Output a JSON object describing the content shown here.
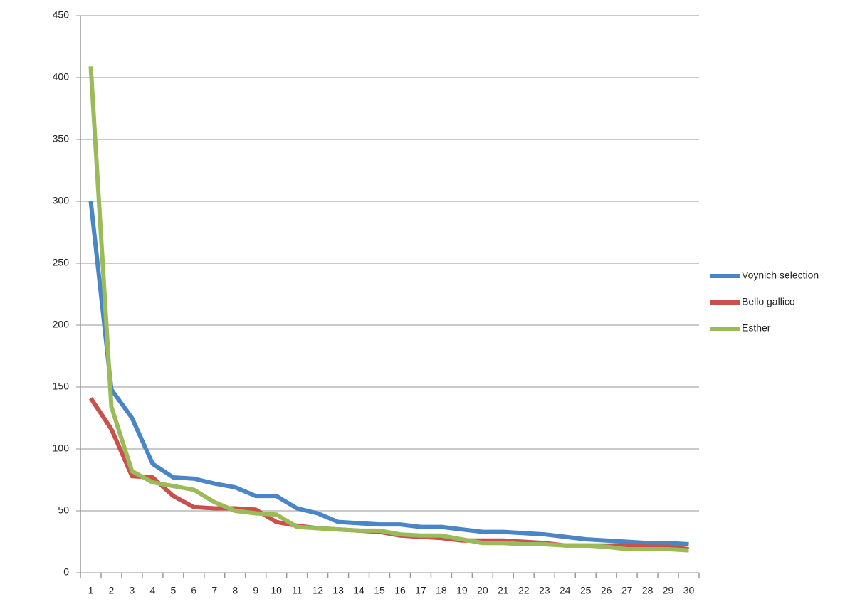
{
  "chart_data": {
    "type": "line",
    "categories": [
      1,
      2,
      3,
      4,
      5,
      6,
      7,
      8,
      9,
      10,
      11,
      12,
      13,
      14,
      15,
      16,
      17,
      18,
      19,
      20,
      21,
      22,
      23,
      24,
      25,
      26,
      27,
      28,
      29,
      30
    ],
    "series": [
      {
        "name": "Voynich selection",
        "color": "#4a86c6",
        "values": [
          300,
          148,
          125,
          88,
          77,
          76,
          72,
          69,
          62,
          62,
          52,
          48,
          41,
          40,
          39,
          39,
          37,
          37,
          35,
          33,
          33,
          32,
          31,
          29,
          27,
          26,
          25,
          24,
          24,
          23
        ]
      },
      {
        "name": "Bello gallico",
        "color": "#c9504b",
        "values": [
          141,
          116,
          78,
          77,
          62,
          53,
          52,
          52,
          51,
          41,
          38,
          36,
          35,
          34,
          33,
          30,
          29,
          28,
          26,
          26,
          26,
          25,
          24,
          22,
          22,
          22,
          22,
          21,
          21,
          19
        ]
      },
      {
        "name": "Esther",
        "color": "#9bbb59",
        "values": [
          409,
          134,
          82,
          73,
          70,
          67,
          57,
          50,
          48,
          47,
          37,
          36,
          35,
          34,
          34,
          31,
          30,
          30,
          27,
          24,
          24,
          23,
          23,
          22,
          22,
          21,
          19,
          19,
          19,
          18
        ]
      }
    ],
    "ylim": [
      0,
      450
    ],
    "yticks": [
      0,
      50,
      100,
      150,
      200,
      250,
      300,
      350,
      400,
      450
    ],
    "grid": true,
    "legend": "right"
  }
}
